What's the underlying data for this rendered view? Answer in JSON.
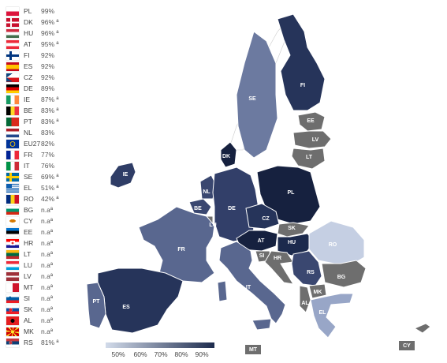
{
  "countries": [
    {
      "code": "PL",
      "value": "99%"
    },
    {
      "code": "DK",
      "value": "96% ª"
    },
    {
      "code": "HU",
      "value": "96% ª"
    },
    {
      "code": "AT",
      "value": "95% ª"
    },
    {
      "code": "FI",
      "value": "92%"
    },
    {
      "code": "ES",
      "value": "92%"
    },
    {
      "code": "CZ",
      "value": "92%"
    },
    {
      "code": "DE",
      "value": "89%"
    },
    {
      "code": "IE",
      "value": "87% ª"
    },
    {
      "code": "BE",
      "value": "83% ª"
    },
    {
      "code": "PT",
      "value": "83% ª"
    },
    {
      "code": "NL",
      "value": "83%"
    },
    {
      "code": "EU27",
      "value": "82%"
    },
    {
      "code": "FR",
      "value": "77%"
    },
    {
      "code": "IT",
      "value": "76%"
    },
    {
      "code": "SE",
      "value": "69% ª"
    },
    {
      "code": "EL",
      "value": "51% ª"
    },
    {
      "code": "RO",
      "value": "42% ª"
    },
    {
      "code": "BG",
      "value": "n.aª"
    },
    {
      "code": "CY",
      "value": "n.aª"
    },
    {
      "code": "EE",
      "value": "n.aª"
    },
    {
      "code": "HR",
      "value": "n.aª"
    },
    {
      "code": "LT",
      "value": "n.aª"
    },
    {
      "code": "LU",
      "value": "n.aª"
    },
    {
      "code": "LV",
      "value": "n.aª"
    },
    {
      "code": "MT",
      "value": "n.aª"
    },
    {
      "code": "SI",
      "value": "n.aª"
    },
    {
      "code": "SK",
      "value": "n.aª"
    },
    {
      "code": "AL",
      "value": "n.aª"
    },
    {
      "code": "MK",
      "value": "n.aª"
    },
    {
      "code": "RS",
      "value": "81% ª"
    }
  ],
  "map_labels": {
    "FI": "FI",
    "SE": "SE",
    "EE": "EE",
    "LV": "LV",
    "LT": "LT",
    "DK": "DK",
    "IE": "IE",
    "NL": "NL",
    "BE": "BE",
    "LU": "LU",
    "DE": "DE",
    "PL": "PL",
    "CZ": "CZ",
    "SK": "SK",
    "AT": "AT",
    "HU": "HU",
    "FR": "FR",
    "SI": "SI",
    "HR": "HR",
    "RO": "RO",
    "RS": "RS",
    "BG": "BG",
    "IT": "IT",
    "MK": "MK",
    "AL": "AL",
    "EL": "EL",
    "PT": "PT",
    "ES": "ES",
    "MT": "MT",
    "CY": "CY"
  },
  "color_scale": {
    "ticks": [
      "50%",
      "60%",
      "70%",
      "80%",
      "90%"
    ],
    "colors": {
      "low": "#d2dbea",
      "high": "#1d2b4d",
      "na": "#6e6e6e"
    }
  }
}
